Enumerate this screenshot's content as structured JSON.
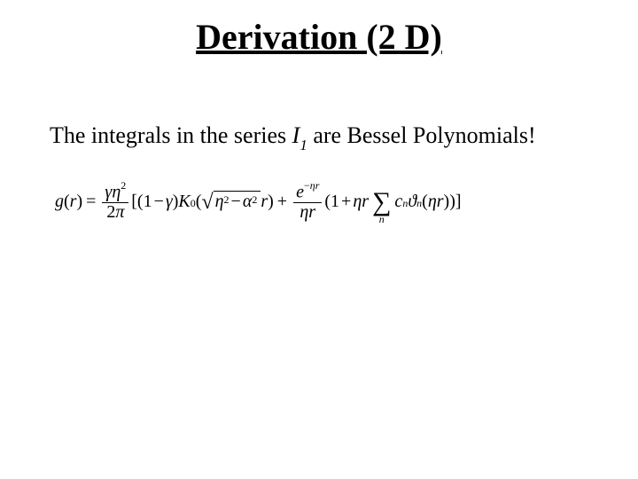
{
  "title": "Derivation (2 D)",
  "subtitle": {
    "pre": "The integrals in the series ",
    "sym": "I",
    "sub": "1",
    "post": " are Bessel Polynomials!"
  },
  "eq": {
    "lhs_g": "g",
    "lhs_paren_open": "(",
    "lhs_r": "r",
    "lhs_paren_close": ")",
    "equals": "=",
    "frac1_num_gamma": "γ",
    "frac1_num_eta": "η",
    "frac1_num_sup": "2",
    "frac1_den_two": "2",
    "frac1_den_pi": "π",
    "lbrack": "[",
    "one_minus_gamma_open": "(",
    "one": "1",
    "minus": "−",
    "gamma2": "γ",
    "one_minus_gamma_close": ")",
    "K": "K",
    "K_sub": "0",
    "K_open": "(",
    "sqrt_eta": "η",
    "sqrt_eta_sup": "2",
    "sqrt_minus": "−",
    "sqrt_alpha": "α",
    "sqrt_alpha_sup": "2",
    "after_sqrt_r": "r",
    "K_close": ")",
    "plus": "+",
    "frac2_num_e": "e",
    "frac2_num_exp_minus": "−",
    "frac2_num_exp_eta": "η",
    "frac2_num_exp_r": "r",
    "frac2_den_eta": "η",
    "frac2_den_r": "r",
    "paren2_open": "(",
    "one2": "1",
    "plus2": "+",
    "eta3": "η",
    "r3": "r",
    "sum": "∑",
    "sum_under": "n",
    "c": "c",
    "c_sub": "n",
    "theta": "ϑ",
    "theta_sub": "n",
    "theta_open": "(",
    "eta4": "η",
    "r4": "r",
    "theta_close": ")",
    "paren2_close": ")",
    "rbrack": "]"
  },
  "style": {
    "bg": "#ffffff",
    "fg": "#000000",
    "title_fontsize": 40,
    "subtitle_fontsize": 26,
    "eq_fontsize": 20
  }
}
